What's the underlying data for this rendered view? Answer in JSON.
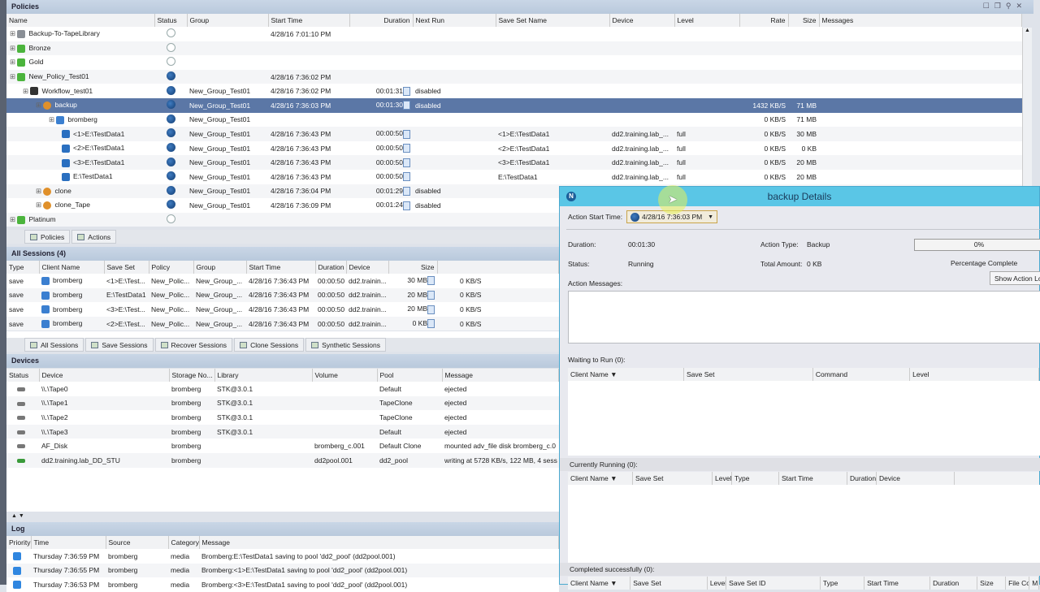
{
  "policies": {
    "title": "Policies",
    "window_controls": [
      "maximize",
      "restore",
      "pin",
      "close"
    ],
    "columns": [
      "Name",
      "Status",
      "Group",
      "Start Time",
      "Duration",
      "Next Run",
      "Save Set Name",
      "Device",
      "Level",
      "Rate",
      "Size",
      "Messages"
    ],
    "rows": [
      {
        "indent": 0,
        "icon": "tape-library-icon",
        "status": "idle",
        "cells": [
          "Backup-To-TapeLibrary",
          "",
          "",
          "4/28/16 7:01:10 PM",
          "",
          "",
          "",
          "",
          "",
          "",
          "",
          ""
        ]
      },
      {
        "indent": 0,
        "icon": "policy-icon",
        "status": "idle",
        "cells": [
          "Bronze",
          "",
          "",
          "",
          "",
          "",
          "",
          "",
          "",
          "",
          "",
          ""
        ]
      },
      {
        "indent": 0,
        "icon": "policy-icon",
        "status": "idle",
        "cells": [
          "Gold",
          "",
          "",
          "",
          "",
          "",
          "",
          "",
          "",
          "",
          "",
          ""
        ]
      },
      {
        "indent": 0,
        "icon": "policy-icon",
        "status": "running",
        "cells": [
          "New_Policy_Test01",
          "",
          "",
          "4/28/16 7:36:02 PM",
          "",
          "",
          "",
          "",
          "",
          "",
          "",
          ""
        ]
      },
      {
        "indent": 1,
        "icon": "workflow-icon",
        "status": "running",
        "bar": true,
        "cells": [
          "Workflow_test01",
          "",
          "New_Group_Test01",
          "4/28/16 7:36:02 PM",
          "00:01:31",
          "disabled",
          "",
          "",
          "",
          "",
          "",
          ""
        ]
      },
      {
        "indent": 2,
        "icon": "action-icon",
        "status": "running",
        "bar": true,
        "selected": true,
        "cells": [
          "backup",
          "",
          "New_Group_Test01",
          "4/28/16 7:36:03 PM",
          "00:01:30",
          "disabled",
          "",
          "",
          "",
          "1432 KB/S",
          "71 MB",
          ""
        ]
      },
      {
        "indent": 3,
        "icon": "client-icon",
        "status": "running",
        "cells": [
          "bromberg",
          "",
          "New_Group_Test01",
          "",
          "",
          "",
          "",
          "",
          "",
          "0 KB/S",
          "71 MB",
          ""
        ]
      },
      {
        "indent": 4,
        "icon": "saveset-icon",
        "status": "running",
        "bar": true,
        "cells": [
          "<1>E:\\TestData1",
          "",
          "New_Group_Test01",
          "4/28/16 7:36:43 PM",
          "00:00:50",
          "",
          "<1>E:\\TestData1",
          "dd2.training.lab_...",
          "full",
          "0 KB/S",
          "30 MB",
          ""
        ]
      },
      {
        "indent": 4,
        "icon": "saveset-icon",
        "status": "running",
        "bar": true,
        "cells": [
          "<2>E:\\TestData1",
          "",
          "New_Group_Test01",
          "4/28/16 7:36:43 PM",
          "00:00:50",
          "",
          "<2>E:\\TestData1",
          "dd2.training.lab_...",
          "full",
          "0 KB/S",
          "0 KB",
          ""
        ]
      },
      {
        "indent": 4,
        "icon": "saveset-icon",
        "status": "running",
        "bar": true,
        "cells": [
          "<3>E:\\TestData1",
          "",
          "New_Group_Test01",
          "4/28/16 7:36:43 PM",
          "00:00:50",
          "",
          "<3>E:\\TestData1",
          "dd2.training.lab_...",
          "full",
          "0 KB/S",
          "20 MB",
          ""
        ]
      },
      {
        "indent": 4,
        "icon": "saveset-icon",
        "status": "running",
        "bar": true,
        "cells": [
          "E:\\TestData1",
          "",
          "New_Group_Test01",
          "4/28/16 7:36:43 PM",
          "00:00:50",
          "",
          "E:\\TestData1",
          "dd2.training.lab_...",
          "full",
          "0 KB/S",
          "20 MB",
          ""
        ]
      },
      {
        "indent": 2,
        "icon": "action-icon",
        "status": "running",
        "bar": true,
        "cells": [
          "clone",
          "",
          "New_Group_Test01",
          "4/28/16 7:36:04 PM",
          "00:01:29",
          "disabled",
          "",
          "",
          "",
          "",
          "",
          ""
        ]
      },
      {
        "indent": 2,
        "icon": "action-icon",
        "status": "running",
        "bar": true,
        "cells": [
          "clone_Tape",
          "",
          "New_Group_Test01",
          "4/28/16 7:36:09 PM",
          "00:01:24",
          "disabled",
          "",
          "",
          "",
          "",
          "",
          ""
        ]
      },
      {
        "indent": 0,
        "icon": "policy-icon",
        "status": "idle",
        "cells": [
          "Platinum",
          "",
          "",
          "",
          "",
          "",
          "",
          "",
          "",
          "",
          "",
          ""
        ]
      }
    ],
    "tabs": [
      "Policies",
      "Actions"
    ]
  },
  "sessions": {
    "title": "All Sessions (4)",
    "columns": [
      "Type",
      "Client Name",
      "Save Set",
      "Policy",
      "Group",
      "Start Time",
      "Duration",
      "Device",
      "Size",
      ""
    ],
    "rows": [
      [
        "save",
        "bromberg",
        "<1>E:\\Test...",
        "New_Polic...",
        "New_Group_...",
        "4/28/16 7:36:43 PM",
        "00:00:50",
        "dd2.trainin...",
        "30 MB",
        "0 KB/S"
      ],
      [
        "save",
        "bromberg",
        "E:\\TestData1",
        "New_Polic...",
        "New_Group_...",
        "4/28/16 7:36:43 PM",
        "00:00:50",
        "dd2.trainin...",
        "20 MB",
        "0 KB/S"
      ],
      [
        "save",
        "bromberg",
        "<3>E:\\Test...",
        "New_Polic...",
        "New_Group_...",
        "4/28/16 7:36:43 PM",
        "00:00:50",
        "dd2.trainin...",
        "20 MB",
        "0 KB/S"
      ],
      [
        "save",
        "bromberg",
        "<2>E:\\Test...",
        "New_Polic...",
        "New_Group_...",
        "4/28/16 7:36:43 PM",
        "00:00:50",
        "dd2.trainin...",
        "0 KB",
        "0 KB/S"
      ]
    ],
    "tabs": [
      "All Sessions",
      "Save Sessions",
      "Recover Sessions",
      "Clone Sessions",
      "Synthetic Sessions"
    ]
  },
  "devices": {
    "title": "Devices",
    "columns": [
      "Status",
      "Device",
      "Storage No...",
      "Library",
      "Volume",
      "Pool",
      "Message"
    ],
    "rows": [
      [
        "",
        "\\\\.\\Tape0",
        "bromberg",
        "STK@3.0.1",
        "",
        "Default",
        "ejected"
      ],
      [
        "",
        "\\\\.\\Tape1",
        "bromberg",
        "STK@3.0.1",
        "",
        "TapeClone",
        "ejected"
      ],
      [
        "",
        "\\\\.\\Tape2",
        "bromberg",
        "STK@3.0.1",
        "",
        "TapeClone",
        "ejected"
      ],
      [
        "",
        "\\\\.\\Tape3",
        "bromberg",
        "STK@3.0.1",
        "",
        "Default",
        "ejected"
      ],
      [
        "",
        "AF_Disk",
        "bromberg",
        "",
        "bromberg_c.001",
        "Default Clone",
        "mounted adv_file disk bromberg_c.0"
      ],
      [
        "",
        "dd2.training.lab_DD_STU",
        "bromberg",
        "",
        "dd2pool.001",
        "dd2_pool",
        "writing at 5728 KB/s, 122 MB, 4 sess"
      ]
    ]
  },
  "log": {
    "title": "Log",
    "columns": [
      "Priority",
      "Time",
      "Source",
      "Category",
      "Message"
    ],
    "rows": [
      [
        "",
        "Thursday 7:36:59 PM",
        "bromberg",
        "media",
        "Bromberg:E:\\TestData1 saving to pool 'dd2_pool' (dd2pool.001)"
      ],
      [
        "",
        "Thursday 7:36:55 PM",
        "bromberg",
        "media",
        "Bromberg:<1>E:\\TestData1 saving to pool 'dd2_pool' (dd2pool.001)"
      ],
      [
        "",
        "Thursday 7:36:53 PM",
        "bromberg",
        "media",
        "Bromberg:<3>E:\\TestData1 saving to pool 'dd2_pool' (dd2pool.001)"
      ]
    ]
  },
  "dialog": {
    "title": "backup Details",
    "start_time_label": "Action Start Time:",
    "start_time_value": "4/28/16 7:36:03 PM",
    "duration_label": "Duration:",
    "duration": "00:01:30",
    "status_label": "Status:",
    "status": "Running",
    "action_type_label": "Action Type:",
    "action_type": "Backup",
    "total_label": "Total Amount:",
    "total": "0 KB",
    "progress_percent": 0,
    "progress_text": "0%",
    "progress_label": "Percentage Complete",
    "show_log_button": "Show Action Log",
    "messages_label": "Action Messages:",
    "waiting": {
      "title": "Waiting to Run (0):",
      "columns": [
        "Client Name ▼",
        "Save Set",
        "Command",
        "Level"
      ]
    },
    "running": {
      "title": "Currently Running (0):",
      "columns": [
        "Client Name ▼",
        "Save Set",
        "Level",
        "Type",
        "Start Time",
        "Duration",
        "Device"
      ]
    },
    "completed": {
      "title": "Completed successfully (0):",
      "columns": [
        "Client Name ▼",
        "Save Set",
        "Level",
        "Save Set ID",
        "Type",
        "Start Time",
        "Duration",
        "Size",
        "File Co...",
        "M"
      ]
    }
  },
  "colors": {
    "header": "#c9d6e6",
    "selection": "#5b77a6",
    "dialog_title": "#5ac6e6"
  }
}
